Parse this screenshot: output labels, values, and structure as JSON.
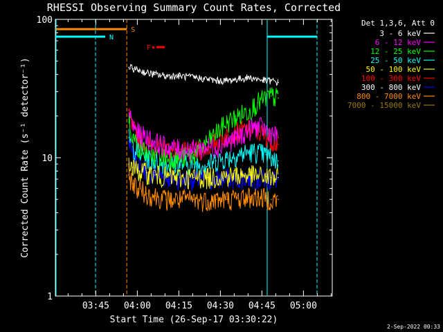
{
  "chart_data": {
    "type": "line",
    "title": "RHESSI Observing Summary Count Rates, Corrected",
    "xlabel": "Start Time (26-Sep-17 03:30:22)",
    "ylabel": "Corrected Count Rate (s⁻¹ detector⁻¹)",
    "yscale": "log",
    "ylim": [
      1,
      100
    ],
    "xlim_minutes": [
      0,
      100
    ],
    "y_ticks": [
      "1",
      "10",
      "100"
    ],
    "x_ticks": [
      {
        "label": "03:45",
        "t": 14.6
      },
      {
        "label": "04:00",
        "t": 29.6
      },
      {
        "label": "04:15",
        "t": 44.6
      },
      {
        "label": "04:30",
        "t": 59.6
      },
      {
        "label": "04:45",
        "t": 74.6
      },
      {
        "label": "05:00",
        "t": 89.6
      }
    ],
    "legend_header": "Det 1,3,6, Att 0",
    "legend_position": "outside-right",
    "series": [
      {
        "name": "3 - 6 keV",
        "color": "#ffffff",
        "x": [
          26.5,
          28,
          30,
          33,
          36,
          40,
          45,
          50,
          55,
          58,
          62,
          66,
          70,
          73,
          76,
          78,
          80.5
        ],
        "y": [
          45,
          44,
          43,
          41,
          40,
          39,
          39,
          38,
          37,
          36,
          36,
          37,
          38,
          37,
          36,
          36,
          35
        ]
      },
      {
        "name": "6 - 12 keV",
        "color": "#ff00ff",
        "x": [
          26.5,
          28,
          30,
          33,
          36,
          40,
          45,
          50,
          55,
          58,
          62,
          66,
          70,
          73,
          76,
          78,
          80.5
        ],
        "y": [
          22,
          17,
          15,
          14,
          13,
          12,
          11.5,
          11.5,
          12,
          12,
          13,
          14,
          16,
          17,
          16,
          15,
          14
        ]
      },
      {
        "name": "12 - 25 keV",
        "color": "#00ff00",
        "x": [
          26.5,
          28,
          30,
          33,
          36,
          40,
          45,
          50,
          55,
          58,
          62,
          66,
          70,
          73,
          76,
          78,
          80.5
        ],
        "y": [
          19,
          14,
          12,
          11,
          10.5,
          10,
          10,
          10.5,
          13,
          15,
          18,
          20,
          22,
          25,
          27,
          28,
          27
        ]
      },
      {
        "name": "25 - 50 keV",
        "color": "#00ffff",
        "x": [
          26.5,
          28,
          30,
          33,
          36,
          40,
          45,
          50,
          55,
          58,
          62,
          66,
          70,
          73,
          76,
          78,
          80.5
        ],
        "y": [
          14,
          12,
          11,
          10,
          9.5,
          9,
          9,
          9,
          9,
          9.5,
          10,
          10.5,
          11,
          11,
          10.5,
          10,
          9.5
        ]
      },
      {
        "name": "50 - 100 keV",
        "color": "#ffff00",
        "x": [
          26.5,
          28,
          30,
          33,
          36,
          40,
          45,
          50,
          55,
          58,
          62,
          66,
          70,
          73,
          76,
          78,
          80.5
        ],
        "y": [
          9,
          8.5,
          8,
          7.8,
          7.5,
          7.3,
          7.2,
          7.2,
          7.2,
          7.3,
          7.4,
          7.5,
          7.5,
          7.4,
          7.3,
          7.2,
          7.2
        ]
      },
      {
        "name": "100 - 300 keV",
        "color": "#ff0000",
        "x": [
          26.5,
          28,
          30,
          33,
          36,
          40,
          45,
          50,
          55,
          58,
          62,
          66,
          70,
          73,
          76,
          78,
          80.5
        ],
        "y": [
          20,
          16,
          14,
          12.5,
          12,
          11.5,
          11,
          11,
          12,
          13,
          14.5,
          15.5,
          16,
          15.5,
          14.5,
          13.5,
          12.5
        ]
      },
      {
        "name": "300 - 800 keV",
        "color": "#0000ff",
        "x": [
          26.5,
          28,
          30,
          33,
          36,
          40,
          45,
          50,
          55,
          58,
          62,
          66,
          70,
          73,
          76,
          78,
          80.5
        ],
        "y": [
          13,
          10,
          9,
          8,
          7.6,
          7.2,
          7,
          7,
          7,
          7,
          7.1,
          7.1,
          7.2,
          7.1,
          7,
          7,
          7
        ]
      },
      {
        "name": "800 - 7000 keV",
        "color": "#ff8c00",
        "x": [
          26.5,
          28,
          30,
          33,
          36,
          40,
          45,
          50,
          55,
          58,
          62,
          66,
          70,
          73,
          76,
          78,
          80.5
        ],
        "y": [
          7.5,
          6.5,
          6,
          5.5,
          5.3,
          5,
          5,
          5,
          4.9,
          5,
          5,
          5.1,
          5.2,
          5.2,
          5.1,
          5,
          5
        ]
      },
      {
        "name": "7000 - 15000 keV",
        "color": "#9b7a00",
        "x": [],
        "y": []
      }
    ],
    "annotations": [
      {
        "label": "S",
        "color": "#ff8c00",
        "t": 25.8,
        "y_top": 85
      },
      {
        "label": "N",
        "color": "#00ffff",
        "t": 0,
        "y_top": 75
      },
      {
        "label": "F",
        "color": "#ff0000",
        "t": 33,
        "y": 63
      }
    ]
  },
  "footer": {
    "timestamp": "2-Sep-2022 00:33"
  }
}
